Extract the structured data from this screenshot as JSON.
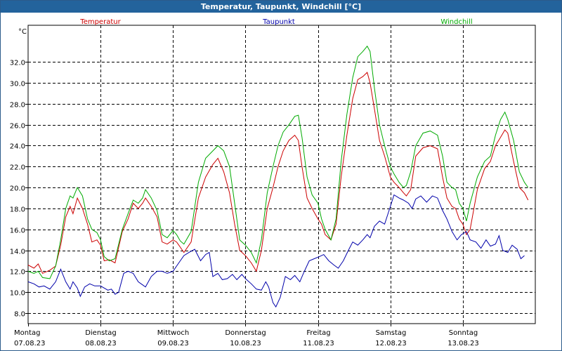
{
  "window": {
    "title": "Temperatur, Taupunkt, Windchill [°C]"
  },
  "chart_data": {
    "type": "line",
    "title": "Temperatur, Taupunkt, Windchill [°C]",
    "ylabel": "°C",
    "ylim": [
      7.0,
      35.5
    ],
    "yticks": [
      8.0,
      10.0,
      12.0,
      14.0,
      16.0,
      18.0,
      20.0,
      22.0,
      24.0,
      26.0,
      28.0,
      30.0,
      32.0
    ],
    "xlim": [
      0,
      7
    ],
    "grid": true,
    "x_labels": [
      {
        "day": "Montag",
        "date": "07.08.23"
      },
      {
        "day": "Dienstag",
        "date": "08.08.23"
      },
      {
        "day": "Mittwoch",
        "date": "09.08.23"
      },
      {
        "day": "Donnerstag",
        "date": "10.08.23"
      },
      {
        "day": "Freitag",
        "date": "11.08.23"
      },
      {
        "day": "Samstag",
        "date": "12.08.23"
      },
      {
        "day": "Sonntag",
        "date": "13.08.23"
      }
    ],
    "series": [
      {
        "name": "Temperatur",
        "color": "#cc0000",
        "points": [
          [
            0.0,
            12.6
          ],
          [
            0.08,
            12.3
          ],
          [
            0.14,
            12.7
          ],
          [
            0.2,
            11.8
          ],
          [
            0.3,
            12.1
          ],
          [
            0.38,
            12.5
          ],
          [
            0.45,
            14.5
          ],
          [
            0.52,
            17.2
          ],
          [
            0.58,
            18.2
          ],
          [
            0.62,
            17.5
          ],
          [
            0.68,
            19.0
          ],
          [
            0.75,
            18.0
          ],
          [
            0.82,
            16.5
          ],
          [
            0.88,
            14.8
          ],
          [
            0.95,
            15.0
          ],
          [
            1.0,
            14.5
          ],
          [
            1.05,
            13.0
          ],
          [
            1.12,
            13.1
          ],
          [
            1.2,
            12.8
          ],
          [
            1.3,
            15.8
          ],
          [
            1.38,
            17.0
          ],
          [
            1.45,
            18.5
          ],
          [
            1.52,
            18.0
          ],
          [
            1.58,
            18.5
          ],
          [
            1.62,
            19.0
          ],
          [
            1.7,
            18.2
          ],
          [
            1.78,
            17.2
          ],
          [
            1.85,
            14.8
          ],
          [
            1.92,
            14.6
          ],
          [
            2.0,
            15.0
          ],
          [
            2.05,
            14.8
          ],
          [
            2.1,
            14.3
          ],
          [
            2.15,
            13.8
          ],
          [
            2.25,
            14.8
          ],
          [
            2.35,
            19.0
          ],
          [
            2.45,
            21.0
          ],
          [
            2.55,
            22.2
          ],
          [
            2.62,
            22.8
          ],
          [
            2.7,
            21.5
          ],
          [
            2.78,
            19.5
          ],
          [
            2.85,
            16.5
          ],
          [
            2.92,
            14.0
          ],
          [
            3.0,
            13.5
          ],
          [
            3.08,
            12.8
          ],
          [
            3.15,
            12.0
          ],
          [
            3.22,
            14.0
          ],
          [
            3.3,
            18.0
          ],
          [
            3.38,
            20.0
          ],
          [
            3.45,
            22.0
          ],
          [
            3.52,
            23.5
          ],
          [
            3.6,
            24.5
          ],
          [
            3.68,
            25.0
          ],
          [
            3.73,
            24.5
          ],
          [
            3.78,
            22.0
          ],
          [
            3.85,
            19.0
          ],
          [
            3.92,
            18.0
          ],
          [
            4.0,
            17.0
          ],
          [
            4.05,
            16.5
          ],
          [
            4.1,
            15.5
          ],
          [
            4.18,
            15.0
          ],
          [
            4.25,
            16.5
          ],
          [
            4.32,
            21.0
          ],
          [
            4.4,
            25.0
          ],
          [
            4.48,
            28.5
          ],
          [
            4.55,
            30.3
          ],
          [
            4.62,
            30.6
          ],
          [
            4.68,
            31.0
          ],
          [
            4.72,
            30.0
          ],
          [
            4.78,
            27.5
          ],
          [
            4.85,
            24.5
          ],
          [
            4.92,
            23.0
          ],
          [
            5.0,
            21.0
          ],
          [
            5.05,
            20.5
          ],
          [
            5.12,
            20.0
          ],
          [
            5.18,
            19.5
          ],
          [
            5.22,
            19.2
          ],
          [
            5.28,
            19.8
          ],
          [
            5.35,
            23.0
          ],
          [
            5.45,
            23.8
          ],
          [
            5.55,
            24.0
          ],
          [
            5.65,
            23.7
          ],
          [
            5.72,
            21.0
          ],
          [
            5.78,
            19.0
          ],
          [
            5.85,
            18.2
          ],
          [
            5.9,
            18.0
          ],
          [
            5.95,
            17.0
          ],
          [
            6.0,
            16.5
          ],
          [
            6.05,
            15.5
          ],
          [
            6.1,
            16.0
          ],
          [
            6.2,
            19.8
          ],
          [
            6.3,
            21.8
          ],
          [
            6.38,
            22.5
          ],
          [
            6.45,
            24.0
          ],
          [
            6.52,
            24.8
          ],
          [
            6.58,
            25.5
          ],
          [
            6.62,
            25.2
          ],
          [
            6.7,
            22.5
          ],
          [
            6.78,
            20.0
          ],
          [
            6.85,
            19.5
          ],
          [
            6.9,
            18.8
          ]
        ]
      },
      {
        "name": "Taupunkt",
        "color": "#0000aa",
        "points": [
          [
            0.0,
            11.0
          ],
          [
            0.08,
            10.8
          ],
          [
            0.15,
            10.5
          ],
          [
            0.22,
            10.6
          ],
          [
            0.3,
            10.3
          ],
          [
            0.38,
            11.0
          ],
          [
            0.45,
            12.2
          ],
          [
            0.52,
            11.0
          ],
          [
            0.58,
            10.3
          ],
          [
            0.62,
            11.0
          ],
          [
            0.68,
            10.4
          ],
          [
            0.72,
            9.6
          ],
          [
            0.78,
            10.5
          ],
          [
            0.85,
            10.8
          ],
          [
            0.92,
            10.6
          ],
          [
            1.0,
            10.6
          ],
          [
            1.05,
            10.4
          ],
          [
            1.1,
            10.2
          ],
          [
            1.15,
            10.3
          ],
          [
            1.2,
            9.8
          ],
          [
            1.25,
            10.0
          ],
          [
            1.32,
            11.8
          ],
          [
            1.38,
            12.0
          ],
          [
            1.45,
            11.8
          ],
          [
            1.52,
            11.0
          ],
          [
            1.58,
            10.7
          ],
          [
            1.62,
            10.5
          ],
          [
            1.7,
            11.5
          ],
          [
            1.78,
            12.0
          ],
          [
            1.85,
            12.0
          ],
          [
            1.92,
            11.8
          ],
          [
            2.0,
            12.0
          ],
          [
            2.08,
            12.8
          ],
          [
            2.15,
            13.5
          ],
          [
            2.22,
            13.8
          ],
          [
            2.3,
            14.1
          ],
          [
            2.38,
            13.0
          ],
          [
            2.45,
            13.6
          ],
          [
            2.5,
            13.8
          ],
          [
            2.55,
            11.5
          ],
          [
            2.62,
            11.8
          ],
          [
            2.68,
            11.2
          ],
          [
            2.75,
            11.3
          ],
          [
            2.82,
            11.7
          ],
          [
            2.88,
            11.2
          ],
          [
            2.95,
            11.7
          ],
          [
            3.0,
            11.3
          ],
          [
            3.08,
            10.8
          ],
          [
            3.15,
            10.3
          ],
          [
            3.22,
            10.2
          ],
          [
            3.28,
            11.0
          ],
          [
            3.32,
            10.5
          ],
          [
            3.38,
            9.0
          ],
          [
            3.42,
            8.6
          ],
          [
            3.48,
            9.5
          ],
          [
            3.55,
            11.5
          ],
          [
            3.62,
            11.2
          ],
          [
            3.68,
            11.6
          ],
          [
            3.75,
            11.0
          ],
          [
            3.8,
            11.8
          ],
          [
            3.88,
            13.0
          ],
          [
            3.95,
            13.2
          ],
          [
            4.02,
            13.4
          ],
          [
            4.08,
            13.6
          ],
          [
            4.15,
            13.0
          ],
          [
            4.22,
            12.6
          ],
          [
            4.28,
            12.3
          ],
          [
            4.35,
            13.0
          ],
          [
            4.42,
            14.0
          ],
          [
            4.48,
            14.8
          ],
          [
            4.55,
            14.5
          ],
          [
            4.62,
            15.0
          ],
          [
            4.68,
            15.5
          ],
          [
            4.72,
            15.2
          ],
          [
            4.78,
            16.3
          ],
          [
            4.85,
            16.8
          ],
          [
            4.92,
            16.5
          ],
          [
            5.0,
            18.2
          ],
          [
            5.05,
            19.3
          ],
          [
            5.12,
            19.0
          ],
          [
            5.18,
            18.8
          ],
          [
            5.25,
            18.5
          ],
          [
            5.3,
            18.0
          ],
          [
            5.35,
            18.9
          ],
          [
            5.42,
            19.2
          ],
          [
            5.5,
            18.6
          ],
          [
            5.58,
            19.2
          ],
          [
            5.65,
            19.0
          ],
          [
            5.72,
            17.8
          ],
          [
            5.78,
            17.0
          ],
          [
            5.85,
            15.8
          ],
          [
            5.92,
            15.0
          ],
          [
            5.98,
            15.5
          ],
          [
            6.05,
            15.8
          ],
          [
            6.1,
            15.0
          ],
          [
            6.18,
            14.8
          ],
          [
            6.25,
            14.2
          ],
          [
            6.32,
            15.0
          ],
          [
            6.38,
            14.4
          ],
          [
            6.45,
            14.6
          ],
          [
            6.5,
            15.4
          ],
          [
            6.55,
            14.0
          ],
          [
            6.62,
            13.8
          ],
          [
            6.68,
            14.5
          ],
          [
            6.75,
            14.1
          ],
          [
            6.8,
            13.2
          ],
          [
            6.85,
            13.5
          ]
        ]
      },
      {
        "name": "Windchill",
        "color": "#00aa00",
        "points": [
          [
            0.0,
            12.0
          ],
          [
            0.08,
            11.8
          ],
          [
            0.14,
            12.0
          ],
          [
            0.2,
            11.4
          ],
          [
            0.3,
            11.3
          ],
          [
            0.38,
            12.5
          ],
          [
            0.45,
            15.0
          ],
          [
            0.52,
            18.0
          ],
          [
            0.58,
            19.2
          ],
          [
            0.62,
            19.0
          ],
          [
            0.68,
            20.0
          ],
          [
            0.75,
            19.2
          ],
          [
            0.82,
            17.0
          ],
          [
            0.88,
            16.0
          ],
          [
            0.95,
            15.7
          ],
          [
            1.0,
            15.0
          ],
          [
            1.05,
            13.4
          ],
          [
            1.12,
            13.0
          ],
          [
            1.2,
            13.2
          ],
          [
            1.3,
            16.0
          ],
          [
            1.38,
            17.5
          ],
          [
            1.45,
            18.8
          ],
          [
            1.52,
            18.5
          ],
          [
            1.58,
            19.0
          ],
          [
            1.62,
            19.8
          ],
          [
            1.7,
            19.0
          ],
          [
            1.78,
            17.8
          ],
          [
            1.85,
            15.5
          ],
          [
            1.92,
            15.2
          ],
          [
            2.0,
            15.9
          ],
          [
            2.05,
            15.5
          ],
          [
            2.1,
            14.9
          ],
          [
            2.15,
            14.6
          ],
          [
            2.25,
            15.8
          ],
          [
            2.35,
            20.5
          ],
          [
            2.45,
            22.8
          ],
          [
            2.55,
            23.5
          ],
          [
            2.62,
            24.0
          ],
          [
            2.7,
            23.5
          ],
          [
            2.78,
            22.0
          ],
          [
            2.85,
            18.5
          ],
          [
            2.92,
            15.0
          ],
          [
            3.0,
            14.5
          ],
          [
            3.08,
            13.8
          ],
          [
            3.15,
            12.8
          ],
          [
            3.22,
            15.0
          ],
          [
            3.3,
            19.5
          ],
          [
            3.38,
            22.0
          ],
          [
            3.45,
            24.0
          ],
          [
            3.52,
            25.3
          ],
          [
            3.6,
            26.0
          ],
          [
            3.68,
            26.8
          ],
          [
            3.73,
            26.9
          ],
          [
            3.78,
            24.8
          ],
          [
            3.85,
            21.0
          ],
          [
            3.92,
            19.3
          ],
          [
            4.0,
            18.5
          ],
          [
            4.05,
            17.0
          ],
          [
            4.1,
            16.0
          ],
          [
            4.18,
            15.0
          ],
          [
            4.25,
            17.0
          ],
          [
            4.32,
            22.5
          ],
          [
            4.4,
            27.0
          ],
          [
            4.48,
            30.5
          ],
          [
            4.55,
            32.5
          ],
          [
            4.62,
            33.0
          ],
          [
            4.68,
            33.5
          ],
          [
            4.72,
            33.0
          ],
          [
            4.78,
            29.5
          ],
          [
            4.85,
            26.0
          ],
          [
            4.92,
            24.0
          ],
          [
            5.0,
            22.0
          ],
          [
            5.05,
            21.3
          ],
          [
            5.12,
            20.5
          ],
          [
            5.18,
            20.0
          ],
          [
            5.22,
            20.2
          ],
          [
            5.28,
            21.5
          ],
          [
            5.35,
            24.0
          ],
          [
            5.45,
            25.2
          ],
          [
            5.55,
            25.4
          ],
          [
            5.65,
            25.0
          ],
          [
            5.72,
            23.0
          ],
          [
            5.78,
            20.5
          ],
          [
            5.85,
            20.0
          ],
          [
            5.9,
            19.8
          ],
          [
            5.95,
            18.5
          ],
          [
            6.0,
            18.0
          ],
          [
            6.05,
            16.8
          ],
          [
            6.1,
            18.5
          ],
          [
            6.2,
            21.0
          ],
          [
            6.3,
            22.5
          ],
          [
            6.38,
            23.0
          ],
          [
            6.45,
            25.0
          ],
          [
            6.52,
            26.5
          ],
          [
            6.58,
            27.2
          ],
          [
            6.62,
            26.5
          ],
          [
            6.7,
            24.5
          ],
          [
            6.78,
            21.5
          ],
          [
            6.85,
            20.5
          ],
          [
            6.9,
            20.0
          ]
        ]
      }
    ]
  }
}
